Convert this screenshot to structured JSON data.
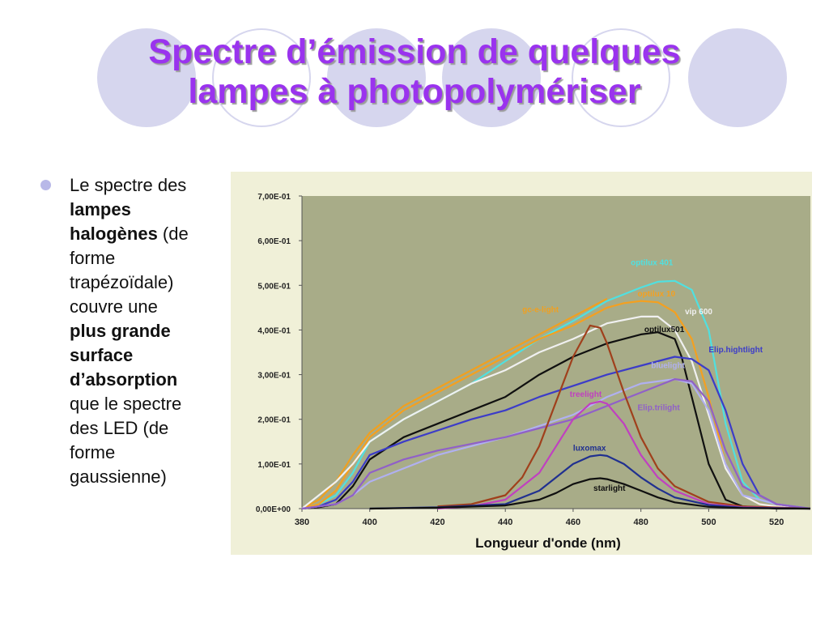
{
  "slide": {
    "title_line1": "Spectre d’émission de quelques",
    "title_line2": "lampes à photopolymériser",
    "text": {
      "t1": "Le spectre des",
      "t2": "lampes",
      "t3": "halogènes",
      "t4": " (de",
      "t5": "forme",
      "t6": "trapézoïdale)",
      "t7": "couvre une",
      "t8": "plus grande",
      "t9": "surface",
      "t10": "d’absorption",
      "t11": "que le spectre",
      "t12": "des LED (de",
      "t13": "forme",
      "t14": "gaussienne)"
    }
  },
  "colors": {
    "title": "#9a33ee",
    "plot_bg": "#a8ac88",
    "bullet": "#b8b8e8"
  },
  "chart_data": {
    "type": "line",
    "xlabel": "Longueur d'onde (nm)",
    "ylabel": "",
    "xlim": [
      380,
      530
    ],
    "ylim": [
      0,
      0.7
    ],
    "x_ticks": [
      380,
      400,
      420,
      440,
      460,
      480,
      500,
      520
    ],
    "x_tick_labels": [
      "380",
      "400",
      "420",
      "440",
      "460",
      "480",
      "500",
      "520"
    ],
    "y_ticks": [
      0,
      0.1,
      0.2,
      0.3,
      0.4,
      0.5,
      0.6,
      0.7
    ],
    "y_tick_labels": [
      "0,00E+00",
      "1,00E-01",
      "2,00E-01",
      "3,00E-01",
      "4,00E-01",
      "5,00E-01",
      "6,00E-01",
      "7,00E-01"
    ],
    "grid": false,
    "series": [
      {
        "name": "optilux 401",
        "color": "#50e0e0",
        "label_at": [
          477,
          0.545
        ],
        "x": [
          380,
          385,
          390,
          395,
          400,
          410,
          420,
          430,
          440,
          450,
          460,
          470,
          480,
          485,
          490,
          495,
          500,
          505,
          510,
          515,
          520,
          525,
          530
        ],
        "y": [
          0.0,
          0.01,
          0.03,
          0.08,
          0.15,
          0.2,
          0.24,
          0.28,
          0.33,
          0.38,
          0.42,
          0.465,
          0.495,
          0.508,
          0.51,
          0.49,
          0.4,
          0.19,
          0.06,
          0.02,
          0.01,
          0.005,
          0.0
        ]
      },
      {
        "name": "optilux 10",
        "color": "#f4a020",
        "label_at": [
          479,
          0.475
        ],
        "x": [
          380,
          385,
          390,
          395,
          400,
          410,
          420,
          430,
          440,
          450,
          460,
          465,
          470,
          475,
          480,
          485,
          490,
          495,
          500,
          505,
          510,
          515,
          520,
          530
        ],
        "y": [
          0.0,
          0.01,
          0.04,
          0.1,
          0.16,
          0.22,
          0.26,
          0.3,
          0.34,
          0.38,
          0.41,
          0.43,
          0.45,
          0.46,
          0.465,
          0.462,
          0.44,
          0.38,
          0.25,
          0.1,
          0.03,
          0.01,
          0.005,
          0.0
        ]
      },
      {
        "name": "gc-e-light",
        "color": "#f0a020",
        "label_at": [
          445,
          0.44
        ],
        "x": [
          380,
          385,
          390,
          395,
          400,
          410,
          420,
          430,
          440,
          450,
          455,
          460,
          465,
          470
        ],
        "y": [
          0.0,
          0.02,
          0.06,
          0.12,
          0.17,
          0.23,
          0.27,
          0.31,
          0.35,
          0.39,
          0.41,
          0.43,
          0.45,
          0.47
        ]
      },
      {
        "name": "vip 600",
        "color": "#f0f0f0",
        "label_at": [
          493,
          0.435
        ],
        "x": [
          380,
          385,
          390,
          395,
          400,
          410,
          420,
          430,
          440,
          450,
          460,
          470,
          480,
          485,
          490,
          495,
          500,
          505,
          510,
          515,
          520,
          530
        ],
        "y": [
          0.0,
          0.03,
          0.06,
          0.1,
          0.15,
          0.2,
          0.24,
          0.28,
          0.31,
          0.35,
          0.38,
          0.415,
          0.43,
          0.43,
          0.4,
          0.33,
          0.21,
          0.09,
          0.03,
          0.01,
          0.005,
          0.0
        ]
      },
      {
        "name": "optilux501",
        "color": "#101010",
        "label_at": [
          481,
          0.395
        ],
        "x": [
          380,
          385,
          390,
          395,
          400,
          410,
          420,
          430,
          440,
          450,
          460,
          470,
          480,
          485,
          490,
          492,
          495,
          500,
          505,
          510,
          520,
          530
        ],
        "y": [
          0.0,
          0.003,
          0.01,
          0.05,
          0.11,
          0.16,
          0.19,
          0.22,
          0.25,
          0.3,
          0.34,
          0.37,
          0.39,
          0.395,
          0.38,
          0.34,
          0.25,
          0.1,
          0.02,
          0.005,
          0.0,
          0.0
        ]
      },
      {
        "name": "Elip.hightlight",
        "color": "#3c3cc8",
        "label_at": [
          500,
          0.35
        ],
        "x": [
          380,
          385,
          390,
          395,
          400,
          410,
          420,
          430,
          440,
          450,
          460,
          470,
          480,
          485,
          490,
          495,
          500,
          505,
          510,
          515,
          520,
          530
        ],
        "y": [
          0.0,
          0.005,
          0.02,
          0.06,
          0.12,
          0.15,
          0.175,
          0.2,
          0.22,
          0.25,
          0.275,
          0.3,
          0.32,
          0.33,
          0.34,
          0.335,
          0.31,
          0.22,
          0.1,
          0.03,
          0.01,
          0.0
        ]
      },
      {
        "name": "bluelight",
        "color": "#b0b0f0",
        "label_at": [
          483,
          0.315
        ],
        "x": [
          380,
          390,
          395,
          400,
          410,
          420,
          440,
          460,
          470,
          480,
          490,
          495,
          500,
          505,
          510,
          520,
          530
        ],
        "y": [
          0.0,
          0.01,
          0.03,
          0.06,
          0.09,
          0.12,
          0.16,
          0.21,
          0.25,
          0.28,
          0.29,
          0.28,
          0.22,
          0.1,
          0.03,
          0.01,
          0.0
        ]
      },
      {
        "name": "Elip.trilight",
        "color": "#9060c8",
        "label_at": [
          479,
          0.22
        ],
        "x": [
          380,
          390,
          395,
          400,
          410,
          420,
          440,
          460,
          470,
          480,
          490,
          495,
          500,
          505,
          510,
          520,
          530
        ],
        "y": [
          0.0,
          0.01,
          0.03,
          0.08,
          0.11,
          0.13,
          0.16,
          0.2,
          0.23,
          0.26,
          0.29,
          0.285,
          0.24,
          0.13,
          0.05,
          0.01,
          0.0
        ]
      },
      {
        "name": "gc-e-light peak",
        "color": "#a0401c",
        "label_at": null,
        "x": [
          420,
          430,
          440,
          445,
          450,
          455,
          460,
          465,
          468,
          470,
          475,
          480,
          485,
          490,
          500,
          510,
          530
        ],
        "y": [
          0.005,
          0.01,
          0.03,
          0.07,
          0.14,
          0.24,
          0.34,
          0.41,
          0.405,
          0.37,
          0.26,
          0.16,
          0.09,
          0.05,
          0.015,
          0.005,
          0.0
        ]
      },
      {
        "name": "treelight",
        "color": "#c040c0",
        "label_at": [
          459,
          0.25
        ],
        "x": [
          420,
          430,
          440,
          450,
          455,
          460,
          465,
          468,
          470,
          475,
          480,
          485,
          490,
          500,
          510,
          530
        ],
        "y": [
          0.0,
          0.005,
          0.02,
          0.08,
          0.14,
          0.2,
          0.235,
          0.24,
          0.235,
          0.19,
          0.12,
          0.07,
          0.04,
          0.01,
          0.003,
          0.0
        ]
      },
      {
        "name": "luxomax",
        "color": "#203090",
        "label_at": [
          460,
          0.13
        ],
        "x": [
          400,
          420,
          440,
          450,
          455,
          460,
          465,
          468,
          470,
          475,
          480,
          485,
          490,
          500,
          510,
          530
        ],
        "y": [
          0.0,
          0.003,
          0.01,
          0.04,
          0.07,
          0.1,
          0.117,
          0.12,
          0.118,
          0.1,
          0.07,
          0.045,
          0.025,
          0.008,
          0.002,
          0.0
        ]
      },
      {
        "name": "starlight",
        "color": "#101010",
        "label_at": [
          466,
          0.04
        ],
        "x": [
          400,
          420,
          440,
          450,
          455,
          460,
          465,
          468,
          470,
          475,
          480,
          485,
          490,
          500,
          510,
          530
        ],
        "y": [
          0.0,
          0.002,
          0.007,
          0.02,
          0.035,
          0.055,
          0.066,
          0.068,
          0.066,
          0.055,
          0.04,
          0.025,
          0.014,
          0.004,
          0.001,
          0.0
        ]
      }
    ]
  }
}
